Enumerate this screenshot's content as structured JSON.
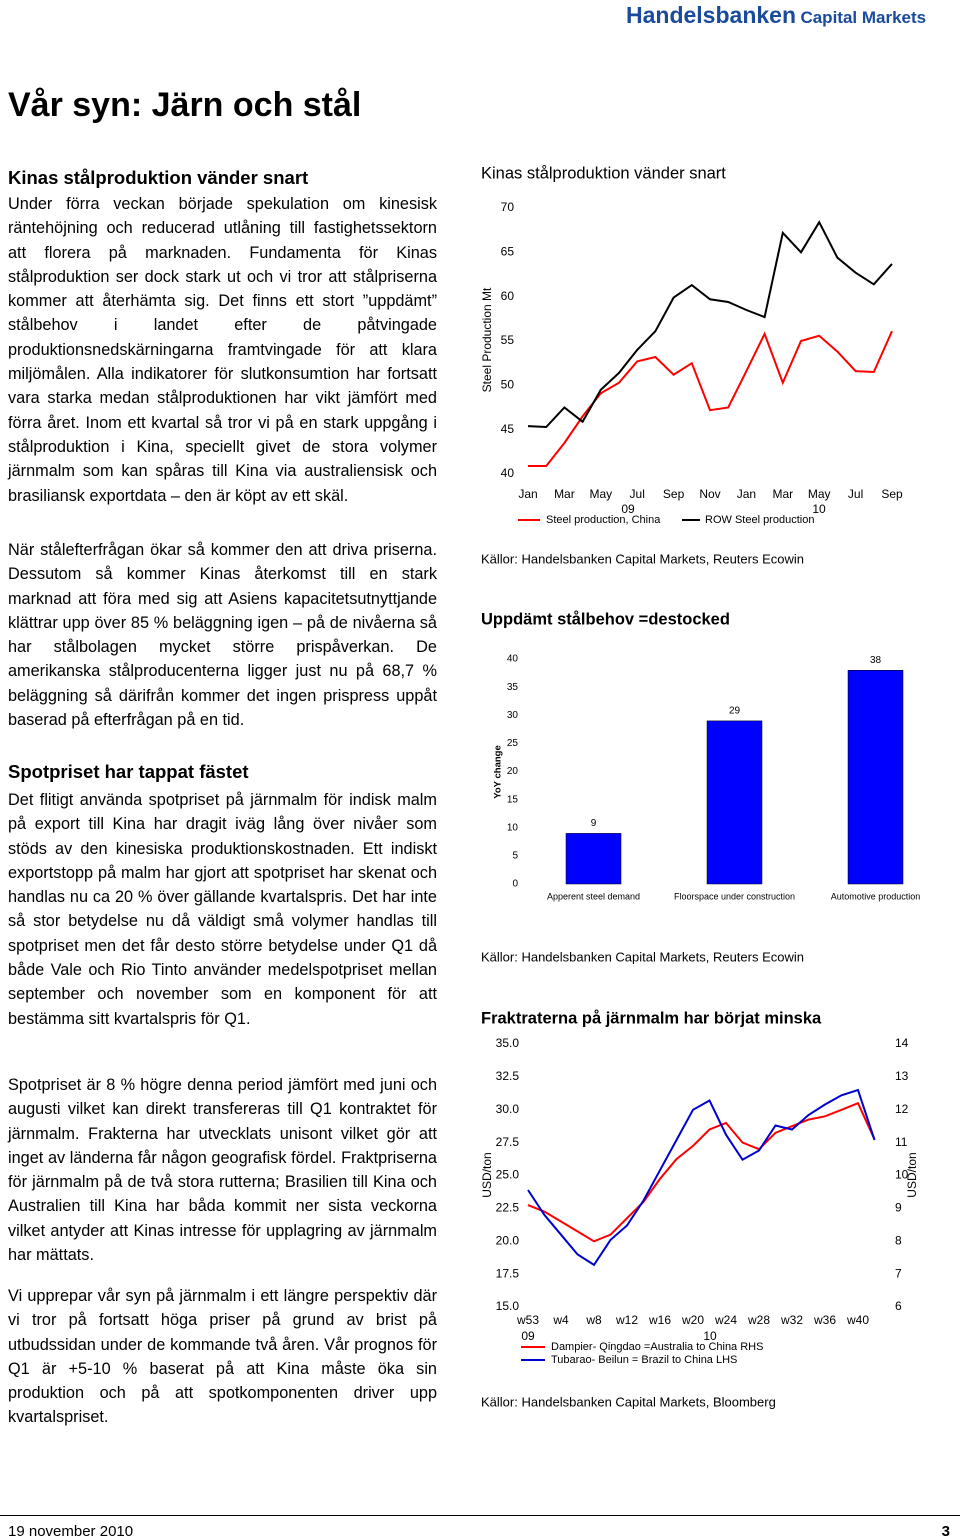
{
  "header": {
    "brand": "Handelsbanken",
    "division": "Capital Markets"
  },
  "article": {
    "title": "Vår syn: Järn och stål",
    "sections": [
      {
        "heading": "Kinas stålproduktion vänder snart",
        "paragraphs": [
          "Under förra veckan började spekulation om kinesisk räntehöjning och reducerad utlåning till fastighetssektorn att florera på marknaden. Fundamenta för Kinas stålproduktion ser dock stark ut och vi tror att stålpriserna kommer att återhämta sig. Det finns ett stort ”uppdämt” stålbehov i landet efter de påtvingade produktionsnedskärningarna framtvingade för att klara miljömålen. Alla indikatorer för slutkonsumtion har fortsatt vara starka medan stålproduktionen har vikt jämfört med förra året. Inom ett kvartal så tror vi på en stark uppgång i stålproduktion i Kina, speciellt givet de stora volymer järnmalm som kan spåras till Kina via australiensisk och brasiliansk exportdata – den är köpt av ett skäl.",
          "När stålefterfrågan ökar så kommer den att driva priserna. Dessutom så kommer Kinas återkomst till en stark marknad att föra med sig att Asiens kapacitetsutnyttjande klättrar upp över 85 % beläggning igen – på de nivåerna så har stålbolagen mycket större prispåverkan. De amerikanska stålproducenterna ligger just nu på 68,7 % beläggning så därifrån kommer det ingen prispress uppåt baserad på efterfrågan på en tid."
        ]
      },
      {
        "heading": "Spotpriset har tappat fästet",
        "paragraphs": [
          "Det flitigt använda spotpriset på järnmalm för indisk malm på export till Kina har dragit iväg lång över nivåer som stöds av den kinesiska produktionskostnaden. Ett indiskt exportstopp på malm har gjort att spotpriset har skenat och handlas nu ca 20 % över gällande kvartalspris. Det har inte så stor betydelse nu då väldigt små volymer handlas till spotpriset men det får desto större betydelse under Q1 då både Vale och Rio Tinto använder medelspotpriset mellan september och november som en komponent för att bestämma sitt kvartalspris för Q1.",
          "Spotpriset är 8 % högre denna period jämfört med juni och augusti vilket kan direkt transfereras till Q1 kontraktet för järnmalm. Frakterna har utvecklats unisont vilket gör att inget av länderna får någon geografisk fördel. Fraktpriserna för järnmalm på de två stora rutterna; Brasilien till Kina och Australien till Kina har båda kommit ner sista veckorna vilket antyder att Kinas intresse för upplagring av järnmalm har mättats.",
          "Vi upprepar vår syn på järnmalm i ett längre perspektiv där vi tror på fortsatt höga priser på grund av brist på utbudssidan under de kommande två åren. Vår prognos för Q1 är +5-10 % baserat på att Kina måste öka sin produktion och på att spotkomponenten driver upp kvartalspriset."
        ]
      }
    ]
  },
  "chart_data": [
    {
      "type": "line",
      "title": "Kinas stålproduktion vänder snart",
      "ylabel": "Steel Production Mt",
      "categories": [
        "Jan",
        null,
        "Mar",
        null,
        "May",
        null,
        "Jul",
        null,
        "Sep",
        null,
        "Nov",
        null,
        "Jan",
        null,
        "Mar",
        null,
        "May",
        null,
        "Jul",
        null,
        "Sep"
      ],
      "year_labels": [
        "09",
        "10"
      ],
      "series": [
        {
          "name": "Steel production, China",
          "color": "#ff0000",
          "values": [
            40.9,
            40.9,
            43.5,
            46.5,
            49.1,
            50.3,
            52.7,
            53.2,
            51.2,
            52.5,
            47.2,
            47.5,
            51.6,
            55.8,
            50.3,
            55.0,
            55.6,
            53.8,
            51.6,
            51.5,
            56.1
          ]
        },
        {
          "name": "ROW Steel production",
          "color": "#000000",
          "values": [
            45.4,
            45.3,
            47.5,
            45.9,
            49.5,
            51.4,
            54.0,
            56.1,
            59.9,
            61.3,
            59.7,
            59.4,
            58.5,
            57.7,
            67.2,
            65.0,
            68.4,
            64.4,
            62.7,
            61.4,
            63.7
          ]
        }
      ],
      "ylim": [
        40,
        70
      ],
      "yticks": [
        40,
        45,
        50,
        55,
        60,
        65,
        70
      ],
      "source": "Källor: Handelsbanken Capital Markets, Reuters Ecowin"
    },
    {
      "type": "bar",
      "title": "Uppdämt stålbehov =destocked",
      "ylabel": "YoY change",
      "categories": [
        "Apperent steel demand",
        "Floorspace under construction",
        "Automotive production"
      ],
      "values": [
        9,
        29,
        38
      ],
      "color": "#0000ff",
      "ylim": [
        0,
        40
      ],
      "yticks": [
        0,
        5,
        10,
        15,
        20,
        25,
        30,
        35,
        40
      ],
      "source": "Källor: Handelsbanken Capital Markets, Reuters Ecowin"
    },
    {
      "type": "line",
      "title": "Fraktraterna på järnmalm har börjat minska",
      "ylabel": "USD/ton",
      "y2label": "USD/ton",
      "categories": [
        "w53",
        null,
        "w4",
        null,
        "w8",
        null,
        "w12",
        null,
        "w16",
        null,
        "w20",
        null,
        "w24",
        null,
        "w28",
        null,
        "w32",
        null,
        "w36",
        null,
        "w40",
        null
      ],
      "year_labels": [
        "09",
        "10"
      ],
      "series": [
        {
          "name": "Dampier- Qingdao =Australia to China RHS",
          "color": "#ff0000",
          "axis": "y2",
          "values": [
            9.1,
            8.9,
            8.6,
            8.3,
            8.0,
            8.2,
            8.7,
            9.2,
            9.9,
            10.5,
            10.9,
            11.4,
            11.6,
            11.0,
            10.8,
            11.3,
            11.5,
            11.7,
            11.8,
            12.0,
            12.2,
            11.1
          ]
        },
        {
          "name": "Tubarao- Beilun = Brazil to China LHS",
          "color": "#0000cc",
          "values": [
            23.9,
            22.0,
            20.5,
            19.0,
            18.2,
            20.1,
            21.2,
            23.1,
            25.4,
            27.7,
            30.0,
            30.7,
            28.1,
            26.2,
            26.9,
            28.8,
            28.5,
            29.6,
            30.4,
            31.1,
            31.5,
            27.7
          ]
        }
      ],
      "ylim": [
        15,
        35
      ],
      "yticks": [
        {
          "value": 15,
          "label": "15.0"
        },
        {
          "value": 17.5,
          "label": "17.5"
        },
        {
          "value": 20,
          "label": "20.0"
        },
        {
          "value": 22.5,
          "label": "22.5"
        },
        {
          "value": 25,
          "label": "25.0"
        },
        {
          "value": 27.5,
          "label": "27.5"
        },
        {
          "value": 30,
          "label": "30.0"
        },
        {
          "value": 32.5,
          "label": "32.5"
        },
        {
          "value": 35,
          "label": "35.0"
        }
      ],
      "y2lim": [
        6,
        14
      ],
      "y2ticks": [
        6,
        7,
        8,
        9,
        10,
        11,
        12,
        13,
        14
      ],
      "source": "Källor: Handelsbanken Capital Markets, Bloomberg"
    }
  ],
  "footer": {
    "date": "19 november 2010",
    "page": "3"
  }
}
